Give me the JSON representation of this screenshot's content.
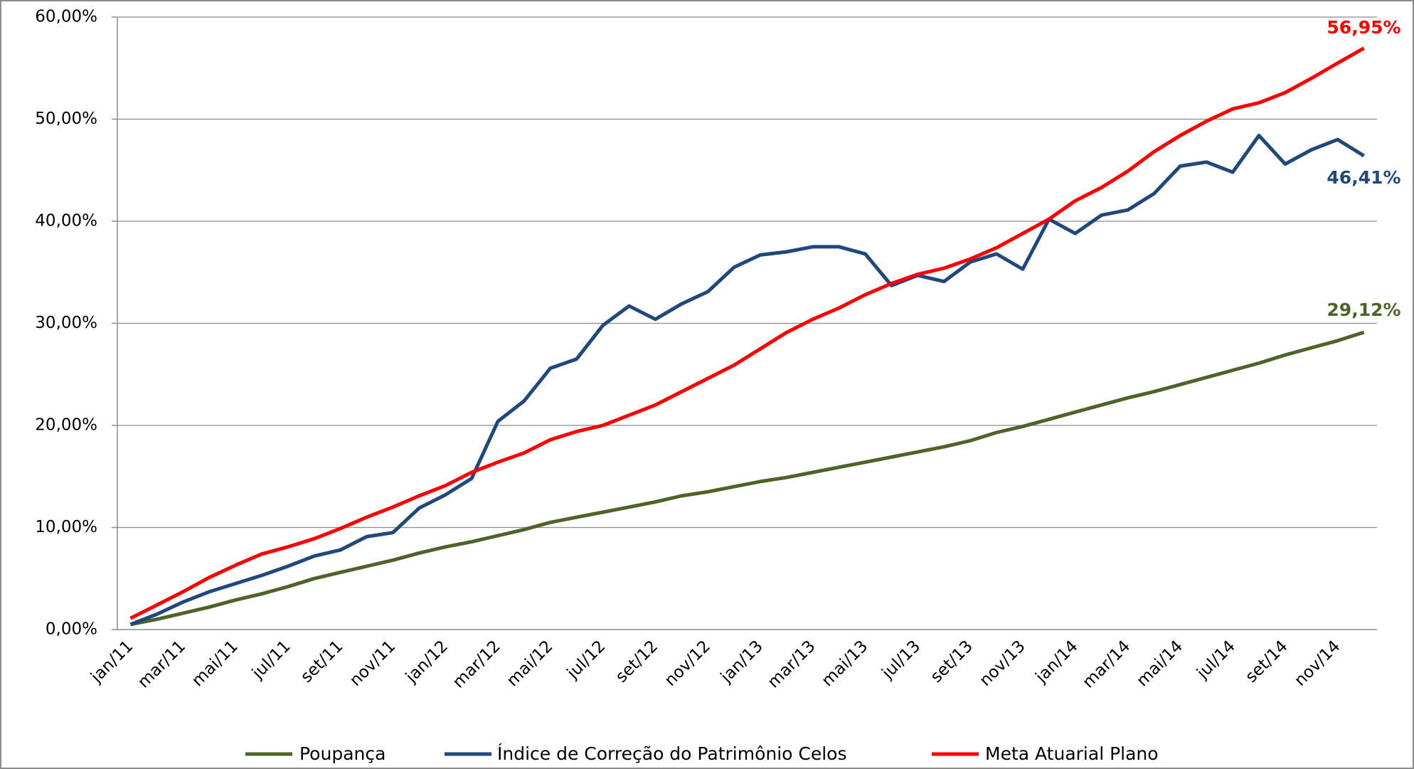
{
  "chart_data": {
    "type": "line",
    "categories": [
      "jan/11",
      null,
      "mar/11",
      null,
      "mai/11",
      null,
      "jul/11",
      null,
      "set/11",
      null,
      "nov/11",
      null,
      "jan/12",
      null,
      "mar/12",
      null,
      "mai/12",
      null,
      "jul/12",
      null,
      "set/12",
      null,
      "nov/12",
      null,
      "jan/13",
      null,
      "mar/13",
      null,
      "mai/13",
      null,
      "jul/13",
      null,
      "set/13",
      null,
      "nov/13",
      null,
      "jan/14",
      null,
      "mar/14",
      null,
      "mai/14",
      null,
      "jul/14",
      null,
      "set/14",
      null,
      "nov/14",
      null
    ],
    "series": [
      {
        "name": "Poupança",
        "color": "#4f6228",
        "values": [
          0.5,
          1.0,
          1.6,
          2.2,
          2.9,
          3.5,
          4.2,
          5.0,
          5.6,
          6.2,
          6.8,
          7.5,
          8.1,
          8.6,
          9.2,
          9.8,
          10.5,
          11.0,
          11.5,
          12.0,
          12.5,
          13.1,
          13.5,
          14.0,
          14.5,
          14.9,
          15.4,
          15.9,
          16.4,
          16.9,
          17.4,
          17.9,
          18.5,
          19.3,
          19.9,
          20.6,
          21.3,
          22.0,
          22.7,
          23.3,
          24.0,
          24.7,
          25.4,
          26.1,
          26.9,
          27.6,
          28.3,
          29.12
        ],
        "value_labels": [
          null,
          null,
          null,
          null,
          null,
          null,
          null,
          null,
          null,
          null,
          null,
          null,
          null,
          null,
          null,
          null,
          null,
          null,
          null,
          null,
          null,
          null,
          null,
          null,
          null,
          null,
          null,
          null,
          null,
          null,
          null,
          null,
          null,
          null,
          null,
          null,
          null,
          null,
          null,
          null,
          null,
          null,
          null,
          null,
          null,
          null,
          null,
          "29,12%"
        ]
      },
      {
        "name": "Índice de Correção do Patrimônio Celos",
        "color": "#1f497d",
        "values": [
          0.5,
          1.5,
          2.7,
          3.7,
          4.5,
          5.3,
          6.2,
          7.2,
          7.8,
          9.1,
          9.5,
          11.9,
          13.2,
          14.8,
          20.4,
          22.4,
          25.6,
          26.5,
          29.8,
          31.7,
          30.4,
          31.9,
          33.1,
          35.5,
          36.7,
          37.0,
          37.5,
          37.5,
          36.8,
          33.7,
          34.7,
          34.1,
          36.0,
          36.8,
          35.3,
          40.2,
          38.8,
          40.6,
          41.1,
          42.7,
          45.4,
          45.8,
          44.8,
          48.4,
          45.6,
          47.0,
          48.0,
          46.41
        ],
        "value_labels": [
          null,
          null,
          null,
          null,
          null,
          null,
          null,
          null,
          null,
          null,
          null,
          null,
          null,
          null,
          null,
          null,
          null,
          null,
          null,
          null,
          null,
          null,
          null,
          null,
          null,
          null,
          null,
          null,
          null,
          null,
          null,
          null,
          null,
          null,
          null,
          null,
          null,
          null,
          null,
          null,
          null,
          null,
          null,
          null,
          null,
          null,
          null,
          "46,41%"
        ]
      },
      {
        "name": "Meta Atuarial Plano",
        "color": "#ff0000",
        "values": [
          1.1,
          2.4,
          3.7,
          5.1,
          6.3,
          7.4,
          8.1,
          8.9,
          9.9,
          11.0,
          12.0,
          13.1,
          14.1,
          15.4,
          16.4,
          17.3,
          18.6,
          19.4,
          20.0,
          21.0,
          22.0,
          23.3,
          24.6,
          25.9,
          27.5,
          29.1,
          30.4,
          31.5,
          32.8,
          33.9,
          34.8,
          35.4,
          36.3,
          37.4,
          38.8,
          40.2,
          42.0,
          43.3,
          44.9,
          46.8,
          48.4,
          49.8,
          51.0,
          51.6,
          52.6,
          54.0,
          55.5,
          56.95
        ],
        "value_labels": [
          null,
          null,
          null,
          null,
          null,
          null,
          null,
          null,
          null,
          null,
          null,
          null,
          null,
          null,
          null,
          null,
          null,
          null,
          null,
          null,
          null,
          null,
          null,
          null,
          null,
          null,
          null,
          null,
          null,
          null,
          null,
          null,
          null,
          null,
          null,
          null,
          null,
          null,
          null,
          null,
          null,
          null,
          null,
          null,
          null,
          null,
          null,
          "56,95%"
        ]
      }
    ],
    "ylim": [
      0,
      60
    ],
    "yticks": [
      {
        "value": 0,
        "label": "0,00%"
      },
      {
        "value": 10,
        "label": "10,00%"
      },
      {
        "value": 20,
        "label": "20,00%"
      },
      {
        "value": 30,
        "label": "30,00%"
      },
      {
        "value": 40,
        "label": "40,00%"
      },
      {
        "value": 50,
        "label": "50,00%"
      },
      {
        "value": 60,
        "label": "60,00%"
      }
    ],
    "grid": true,
    "legend": "bottom"
  }
}
